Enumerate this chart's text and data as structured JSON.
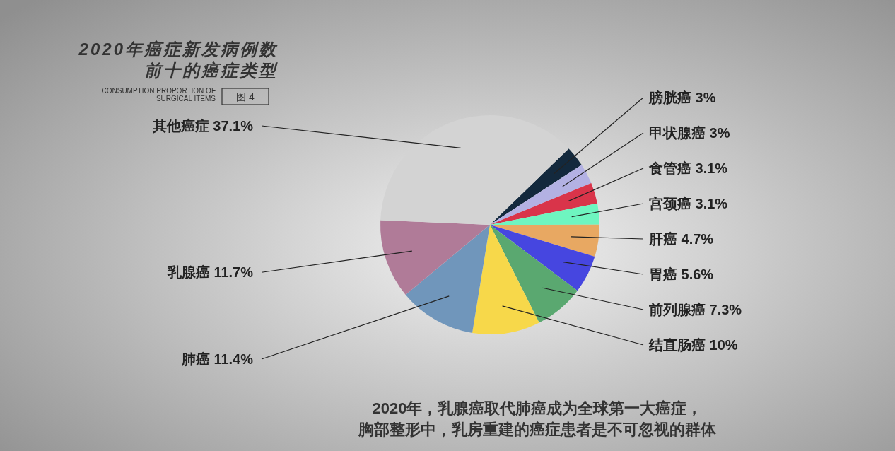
{
  "chart_data": {
    "type": "pie",
    "title": "2020年癌症新发病例数",
    "subtitle": "前十的癌症类型",
    "categories": [
      "膀胱癌",
      "甲状腺癌",
      "食管癌",
      "宫颈癌",
      "肝癌",
      "胃癌",
      "前列腺癌",
      "结直肠癌",
      "肺癌",
      "乳腺癌",
      "其他癌症"
    ],
    "values": [
      3,
      3,
      3.1,
      3.1,
      4.7,
      5.6,
      7.3,
      10,
      11.4,
      11.7,
      37.1
    ],
    "value_labels": [
      "3%",
      "3%",
      "3.1%",
      "3.1%",
      "4.7%",
      "5.6%",
      "7.3%",
      "10%",
      "11.4%",
      "11.7%",
      "37.1%"
    ],
    "colors": [
      "#13293d",
      "#b3b1e3",
      "#d9344a",
      "#6ef5c0",
      "#e8a862",
      "#4646e0",
      "#5aa870",
      "#f7d84a",
      "#7096bb",
      "#b07b98",
      "#d3d3d3"
    ],
    "annotations": [
      "CONSUMPTION PROPORTION OF\nSURGICAL ITEMS",
      "图 4",
      "2020年，乳腺癌取代肺癌成为全球第一大癌症，",
      "胸部整形中，乳房重建的癌症患者是不可忽视的群体"
    ]
  }
}
